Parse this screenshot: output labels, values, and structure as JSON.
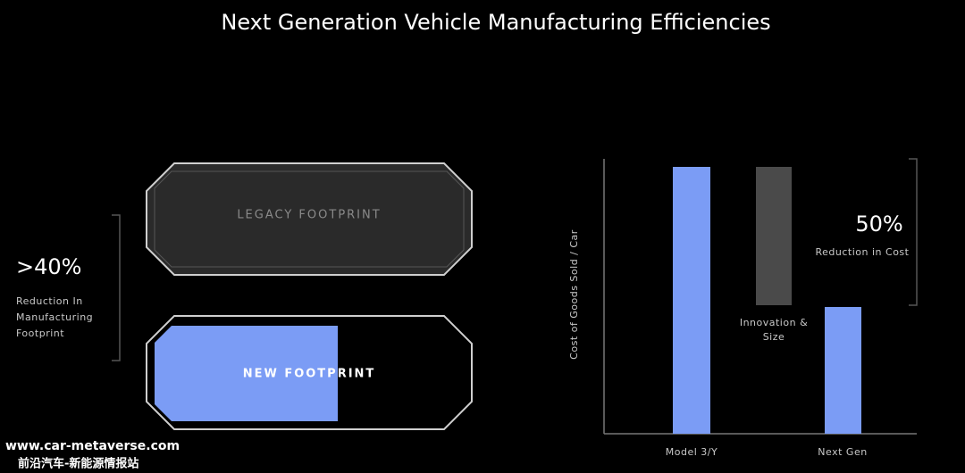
{
  "title": "Next Generation Vehicle Manufacturing Efficiencies",
  "footprint": {
    "legacy_label": "LEGACY FOOTPRINT",
    "new_label": "NEW FOOTPRINT",
    "stat": ">40%",
    "caption": [
      "Reduction In",
      "Manufacturing",
      "Footprint"
    ]
  },
  "cost": {
    "stat": "50%",
    "caption": "Reduction in Cost",
    "y_axis_label": "Cost of Goods Sold / Car",
    "categories": [
      "Model 3/Y",
      "Next Gen"
    ],
    "step_label": [
      "Innovation &",
      "Size"
    ]
  },
  "watermark": {
    "url": "www.car-metaverse.com",
    "name": "前沿汽车-新能源情报站"
  }
}
